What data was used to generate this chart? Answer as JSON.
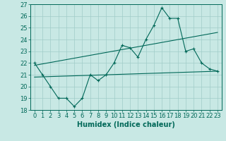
{
  "xlabel": "Humidex (Indice chaleur)",
  "ylabel": "",
  "background_color": "#c8e8e4",
  "grid_color": "#a0ccc8",
  "line_color": "#006858",
  "xlim": [
    -0.5,
    23.5
  ],
  "ylim": [
    18,
    27
  ],
  "yticks": [
    18,
    19,
    20,
    21,
    22,
    23,
    24,
    25,
    26,
    27
  ],
  "xticks": [
    0,
    1,
    2,
    3,
    4,
    5,
    6,
    7,
    8,
    9,
    10,
    11,
    12,
    13,
    14,
    15,
    16,
    17,
    18,
    19,
    20,
    21,
    22,
    23
  ],
  "line1_x": [
    0,
    1,
    2,
    3,
    4,
    5,
    6,
    7,
    8,
    9,
    10,
    11,
    12,
    13,
    14,
    15,
    16,
    17,
    18,
    19,
    20,
    21,
    22,
    23
  ],
  "line1_y": [
    22,
    21,
    20,
    19,
    19,
    18.3,
    19,
    21,
    20.5,
    21,
    22,
    23.5,
    23.3,
    22.5,
    24,
    25.2,
    26.7,
    25.8,
    25.8,
    23,
    23.2,
    22,
    21.5,
    21.3
  ],
  "line2_x": [
    0,
    23
  ],
  "line2_y": [
    20.8,
    21.3
  ],
  "line3_x": [
    0,
    23
  ],
  "line3_y": [
    21.8,
    24.6
  ],
  "font_size_label": 7,
  "font_size_tick": 6
}
